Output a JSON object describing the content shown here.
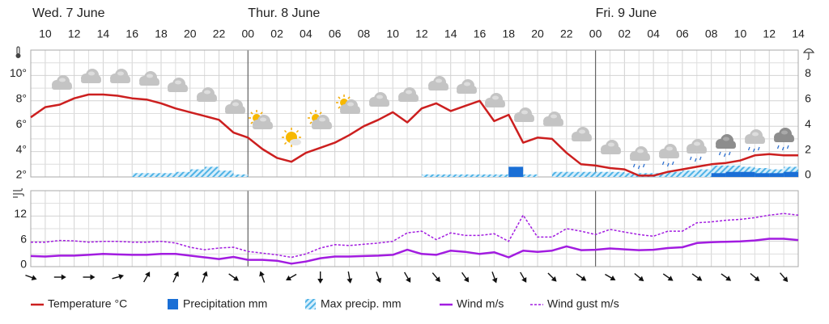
{
  "chart_data": [
    {
      "type": "line",
      "days": [
        "Wed. 7 June",
        "Thur. 8 June",
        "Fri. 9 June"
      ],
      "day_lines": [
        24,
        48
      ],
      "xlim": [
        9,
        62
      ],
      "xticks": [
        10,
        12,
        14,
        16,
        18,
        20,
        22,
        {
          "value": 24,
          "label": "00"
        },
        {
          "value": 26,
          "label": "02"
        },
        {
          "value": 28,
          "label": "04"
        },
        {
          "value": 30,
          "label": "06"
        },
        {
          "value": 32,
          "label": "08"
        },
        {
          "value": 34,
          "label": "10"
        },
        {
          "value": 36,
          "label": "12"
        },
        {
          "value": 38,
          "label": "14"
        },
        {
          "value": 40,
          "label": "16"
        },
        {
          "value": 42,
          "label": "18"
        },
        {
          "value": 44,
          "label": "20"
        },
        {
          "value": 46,
          "label": "22"
        },
        {
          "value": 48,
          "label": "00"
        },
        {
          "value": 50,
          "label": "02"
        },
        {
          "value": 52,
          "label": "04"
        },
        {
          "value": 54,
          "label": "06"
        },
        {
          "value": 56,
          "label": "08"
        },
        {
          "value": 58,
          "label": "10"
        },
        {
          "value": 60,
          "label": "12"
        },
        {
          "value": 62,
          "label": "14"
        }
      ],
      "x_minor_ticks": [
        9,
        11,
        13,
        15,
        17,
        19,
        21,
        23,
        25,
        27,
        29,
        31,
        33,
        35,
        37,
        39,
        41,
        43,
        45,
        47,
        49,
        51,
        53,
        55,
        57,
        59,
        61
      ],
      "ylim": [
        2,
        12
      ],
      "yticks": [
        {
          "value": 2,
          "label": "2°"
        },
        {
          "value": 4,
          "label": "4°"
        },
        {
          "value": 6,
          "label": "6°"
        },
        {
          "value": 8,
          "label": "8°"
        },
        {
          "value": 10,
          "label": "10°"
        }
      ],
      "y_minor_ticks": [
        3,
        5,
        7,
        9,
        11
      ],
      "y2lim": [
        0,
        10
      ],
      "y2ticks": [
        0,
        2,
        4,
        6,
        8
      ],
      "grid": true,
      "x": [
        9,
        10,
        11,
        12,
        13,
        14,
        15,
        16,
        17,
        18,
        19,
        20,
        21,
        22,
        23,
        24,
        25,
        26,
        27,
        28,
        29,
        30,
        31,
        32,
        33,
        34,
        35,
        36,
        37,
        38,
        39,
        40,
        41,
        42,
        43,
        44,
        45,
        46,
        47,
        48,
        49,
        50,
        51,
        52,
        53,
        54,
        55,
        56,
        57,
        58,
        59,
        60,
        61,
        62
      ],
      "series": [
        {
          "name": "Temperature °C",
          "kind": "line",
          "color": "#cc1f1f",
          "values": [
            6.7,
            7.5,
            7.7,
            8.2,
            8.5,
            8.5,
            8.4,
            8.2,
            8.1,
            7.8,
            7.4,
            7.1,
            6.8,
            6.5,
            5.5,
            5.1,
            4.2,
            3.5,
            3.2,
            3.9,
            4.3,
            4.7,
            5.3,
            6.0,
            6.5,
            7.1,
            6.3,
            7.4,
            7.8,
            7.2,
            7.6,
            8.0,
            6.4,
            6.9,
            4.7,
            5.1,
            5.0,
            3.9,
            3.0,
            2.9,
            2.7,
            2.6,
            2.1,
            2.1,
            2.4,
            2.6,
            2.8,
            3.0,
            3.1,
            3.3,
            3.7,
            3.8,
            3.7,
            3.7
          ]
        },
        {
          "name": "Precipitation mm",
          "kind": "bar",
          "axis": "y2",
          "color": "#1a6fd6",
          "values": [
            0,
            0,
            0,
            0,
            0,
            0,
            0,
            0,
            0,
            0,
            0,
            0,
            0,
            0,
            0,
            0,
            0,
            0,
            0,
            0,
            0,
            0,
            0,
            0,
            0,
            0,
            0,
            0,
            0,
            0,
            0,
            0,
            0,
            0.8,
            0,
            0,
            0,
            0,
            0,
            0,
            0,
            0,
            0,
            0,
            0,
            0,
            0,
            0.3,
            0.4,
            0.4,
            0.3,
            0.3,
            0.4,
            null
          ]
        },
        {
          "name": "Max precip. mm",
          "kind": "bar",
          "axis": "y2",
          "pattern": "hatch",
          "color": "#4fb3e6",
          "values": [
            0,
            0,
            0,
            0,
            0,
            0,
            0,
            0.3,
            0.3,
            0.3,
            0.4,
            0.6,
            0.8,
            0.5,
            0.2,
            0,
            0,
            0,
            0,
            0,
            0,
            0,
            0,
            0,
            0,
            0,
            0,
            0.2,
            0.2,
            0.2,
            0.2,
            0.2,
            0.2,
            0.8,
            0.2,
            0,
            0.4,
            0.4,
            0.4,
            0.4,
            0.4,
            0.3,
            0.3,
            0.3,
            0.4,
            0.5,
            0.6,
            0.9,
            0.9,
            0.8,
            0.7,
            0.6,
            0.8,
            null
          ]
        }
      ]
    },
    {
      "type": "line",
      "xlim": [
        9,
        62
      ],
      "ylim": [
        0,
        18
      ],
      "yticks": [
        0,
        6,
        12
      ],
      "y_minor_ticks": [
        3,
        9,
        15
      ],
      "grid": true,
      "x": [
        9,
        10,
        11,
        12,
        13,
        14,
        15,
        16,
        17,
        18,
        19,
        20,
        21,
        22,
        23,
        24,
        25,
        26,
        27,
        28,
        29,
        30,
        31,
        32,
        33,
        34,
        35,
        36,
        37,
        38,
        39,
        40,
        41,
        42,
        43,
        44,
        45,
        46,
        47,
        48,
        49,
        50,
        51,
        52,
        53,
        54,
        55,
        56,
        57,
        58,
        59,
        60,
        61,
        62
      ],
      "series": [
        {
          "name": "Wind m/s",
          "kind": "line",
          "color": "#a21ce0",
          "values": [
            2.5,
            2.4,
            2.6,
            2.6,
            2.8,
            3.0,
            2.9,
            2.8,
            2.8,
            3.0,
            3.0,
            2.6,
            2.2,
            1.8,
            2.3,
            1.6,
            1.6,
            1.4,
            0.7,
            1.2,
            2.0,
            2.4,
            2.4,
            2.5,
            2.6,
            2.8,
            4.0,
            3.0,
            2.8,
            3.8,
            3.5,
            3.0,
            3.4,
            2.2,
            3.8,
            3.5,
            3.8,
            4.8,
            3.9,
            4.0,
            4.3,
            4.1,
            3.9,
            4.0,
            4.4,
            4.6,
            5.6,
            5.8,
            5.9,
            6.0,
            6.2,
            6.6,
            6.6,
            6.3
          ]
        },
        {
          "name": "Wind gust m/s",
          "kind": "line",
          "style": "dotted",
          "color": "#a21ce0",
          "values": [
            5.8,
            5.8,
            6.2,
            6.1,
            5.8,
            6.0,
            6.0,
            5.8,
            5.8,
            6.0,
            5.6,
            4.6,
            4.0,
            4.4,
            4.6,
            3.6,
            3.2,
            2.8,
            2.2,
            3.0,
            4.4,
            5.2,
            5.0,
            5.3,
            5.6,
            6.0,
            8.0,
            8.4,
            6.4,
            8.0,
            7.4,
            7.4,
            7.8,
            6.0,
            12.2,
            7.0,
            7.0,
            9.0,
            8.4,
            7.6,
            8.8,
            8.2,
            7.6,
            7.2,
            8.4,
            8.4,
            10.4,
            10.6,
            11.0,
            11.2,
            11.6,
            12.2,
            12.6,
            12.2
          ]
        }
      ],
      "wind_direction": {
        "x": [
          9,
          11,
          13,
          15,
          17,
          19,
          21,
          23,
          25,
          27,
          29,
          31,
          33,
          35,
          37,
          39,
          41,
          43,
          45,
          47,
          49,
          51,
          53,
          55,
          57,
          59,
          61
        ],
        "values": [
          110,
          90,
          90,
          75,
          30,
          25,
          20,
          125,
          340,
          240,
          180,
          170,
          160,
          150,
          140,
          145,
          160,
          150,
          135,
          125,
          120,
          130,
          125,
          125,
          125,
          130,
          140
        ]
      }
    }
  ]
}
